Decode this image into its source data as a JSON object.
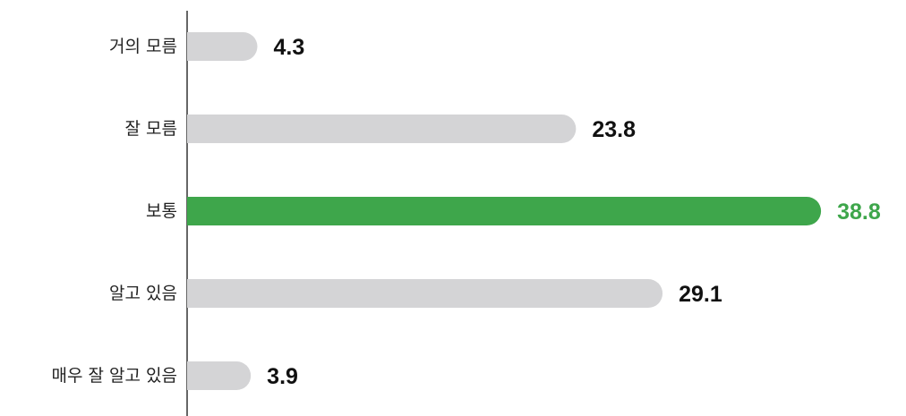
{
  "chart_data": {
    "type": "hbar",
    "categories": [
      "거의 모름",
      "잘 모름",
      "보통",
      "알고 있음",
      "매우 잘 알고 있음"
    ],
    "values": [
      4.3,
      23.8,
      38.8,
      29.1,
      3.9
    ],
    "colors": [
      "#d4d4d6",
      "#d4d4d6",
      "#3ea64b",
      "#d4d4d6",
      "#d4d4d6"
    ],
    "label_colors": [
      "#111111",
      "#111111",
      "#3ea64b",
      "#111111",
      "#111111"
    ],
    "xlim": [
      0,
      40
    ]
  }
}
